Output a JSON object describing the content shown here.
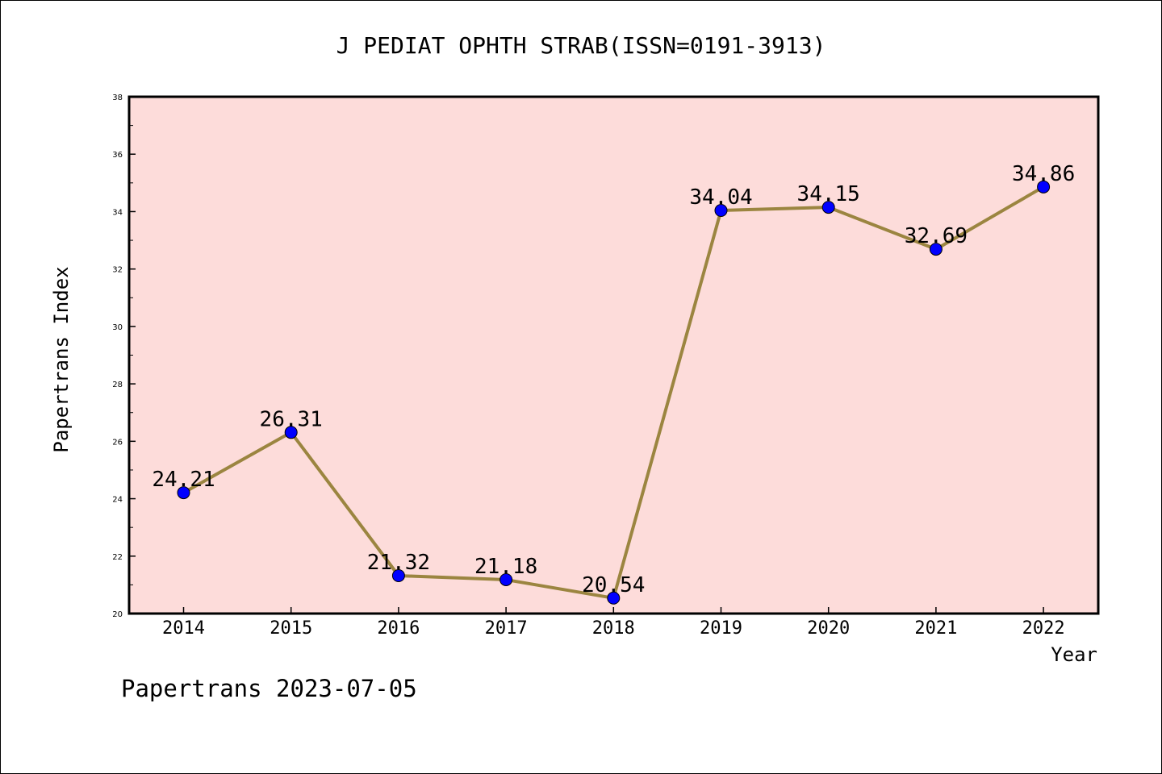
{
  "chart_data": {
    "type": "line",
    "title": "J PEDIAT OPHTH STRAB(ISSN=0191-3913)",
    "xlabel": "Year",
    "ylabel": "Papertrans Index",
    "categories": [
      "2014",
      "2015",
      "2016",
      "2017",
      "2018",
      "2019",
      "2020",
      "2021",
      "2022"
    ],
    "series": [
      {
        "values": [
          24.21,
          26.31,
          21.32,
          21.18,
          20.54,
          34.04,
          34.15,
          32.69,
          34.86
        ],
        "labels": [
          "24.21",
          "26.31",
          "21.32",
          "21.18",
          "20.54",
          "34.04",
          "34.15",
          "32.69",
          "34.86"
        ],
        "line_color": "#9b8540",
        "marker_color": "#0000ff"
      }
    ],
    "ylim": [
      20,
      38
    ],
    "yticks": [
      "20",
      "22",
      "24",
      "26",
      "28",
      "30",
      "32",
      "34",
      "36",
      "38"
    ],
    "grid": false,
    "plot_background": "#fddcda"
  },
  "footer": "Papertrans 2023-07-05"
}
